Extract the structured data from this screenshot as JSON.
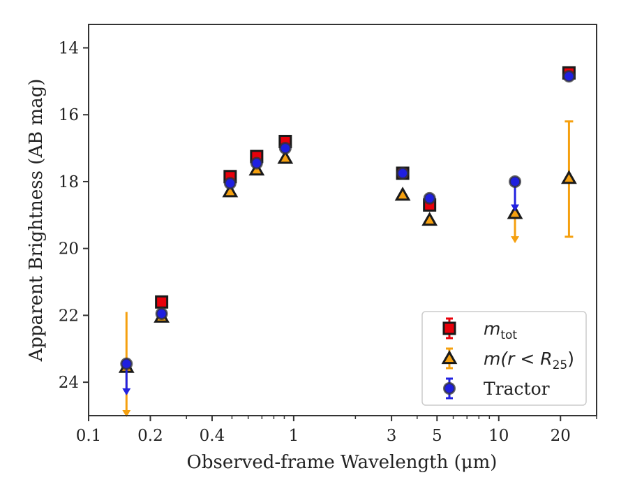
{
  "chart_data": {
    "type": "scatter",
    "xlabel": "Observed-frame Wavelength (μm)",
    "ylabel": "Apparent Brightness (AB mag)",
    "x_scale": "log",
    "xlim": [
      0.1,
      30
    ],
    "ylim": [
      25,
      13.3
    ],
    "y_inverted": true,
    "x_ticks": [
      {
        "value": 0.1,
        "label": "0.1"
      },
      {
        "value": 0.2,
        "label": "0.2"
      },
      {
        "value": 0.4,
        "label": "0.4"
      },
      {
        "value": 1,
        "label": "1"
      },
      {
        "value": 3,
        "label": "3"
      },
      {
        "value": 5,
        "label": "5"
      },
      {
        "value": 10,
        "label": "10"
      },
      {
        "value": 20,
        "label": "20"
      }
    ],
    "y_ticks": [
      {
        "value": 14,
        "label": "14"
      },
      {
        "value": 16,
        "label": "16"
      },
      {
        "value": 18,
        "label": "18"
      },
      {
        "value": 20,
        "label": "20"
      },
      {
        "value": 22,
        "label": "22"
      },
      {
        "value": 24,
        "label": "24"
      }
    ],
    "grid": false,
    "legend_position": "bottom-right",
    "series": [
      {
        "name": "m_tot",
        "legend_main": "m",
        "legend_sub": "tot",
        "marker": "square",
        "color": "#e8000b",
        "errcolor": "#e8000b",
        "points": [
          {
            "x": 0.227,
            "y": 21.6
          },
          {
            "x": 0.49,
            "y": 17.85
          },
          {
            "x": 0.66,
            "y": 17.25
          },
          {
            "x": 0.91,
            "y": 16.8
          },
          {
            "x": 3.4,
            "y": 17.75
          },
          {
            "x": 4.6,
            "y": 18.7
          },
          {
            "x": 22.0,
            "y": 14.75
          }
        ]
      },
      {
        "name": "m(r<R25)",
        "legend_prefix": "m",
        "legend_mid": "(r < R",
        "legend_sub": "25",
        "legend_suffix": ")",
        "marker": "triangle",
        "color": "#f5a00f",
        "errcolor": "#f5a00f",
        "points": [
          {
            "x": 0.153,
            "y": 23.55,
            "upper_limit": true,
            "err_low": 21.9,
            "err_high": 25.0
          },
          {
            "x": 0.227,
            "y": 22.05
          },
          {
            "x": 0.49,
            "y": 18.3
          },
          {
            "x": 0.66,
            "y": 17.65
          },
          {
            "x": 0.91,
            "y": 17.3
          },
          {
            "x": 3.4,
            "y": 18.4
          },
          {
            "x": 4.6,
            "y": 19.15
          },
          {
            "x": 12.0,
            "y": 18.95,
            "upper_limit": true,
            "err_low": 18.95,
            "err_high": 19.8
          },
          {
            "x": 22.0,
            "y": 17.9,
            "err_low": 16.2,
            "err_high": 19.65
          }
        ]
      },
      {
        "name": "Tractor",
        "legend_text": "Tractor",
        "marker": "circle",
        "color": "#1f1fe0",
        "errcolor": "#2222e0",
        "points": [
          {
            "x": 0.153,
            "y": 23.45,
            "upper_limit": true,
            "err_low": 23.45,
            "err_high": 24.35
          },
          {
            "x": 0.227,
            "y": 21.95
          },
          {
            "x": 0.49,
            "y": 18.05
          },
          {
            "x": 0.66,
            "y": 17.45
          },
          {
            "x": 0.91,
            "y": 17.0
          },
          {
            "x": 3.4,
            "y": 17.75
          },
          {
            "x": 4.6,
            "y": 18.5
          },
          {
            "x": 12.0,
            "y": 18.0,
            "upper_limit": true,
            "err_low": 18.0,
            "err_high": 18.85
          },
          {
            "x": 22.0,
            "y": 14.85
          }
        ]
      }
    ]
  }
}
